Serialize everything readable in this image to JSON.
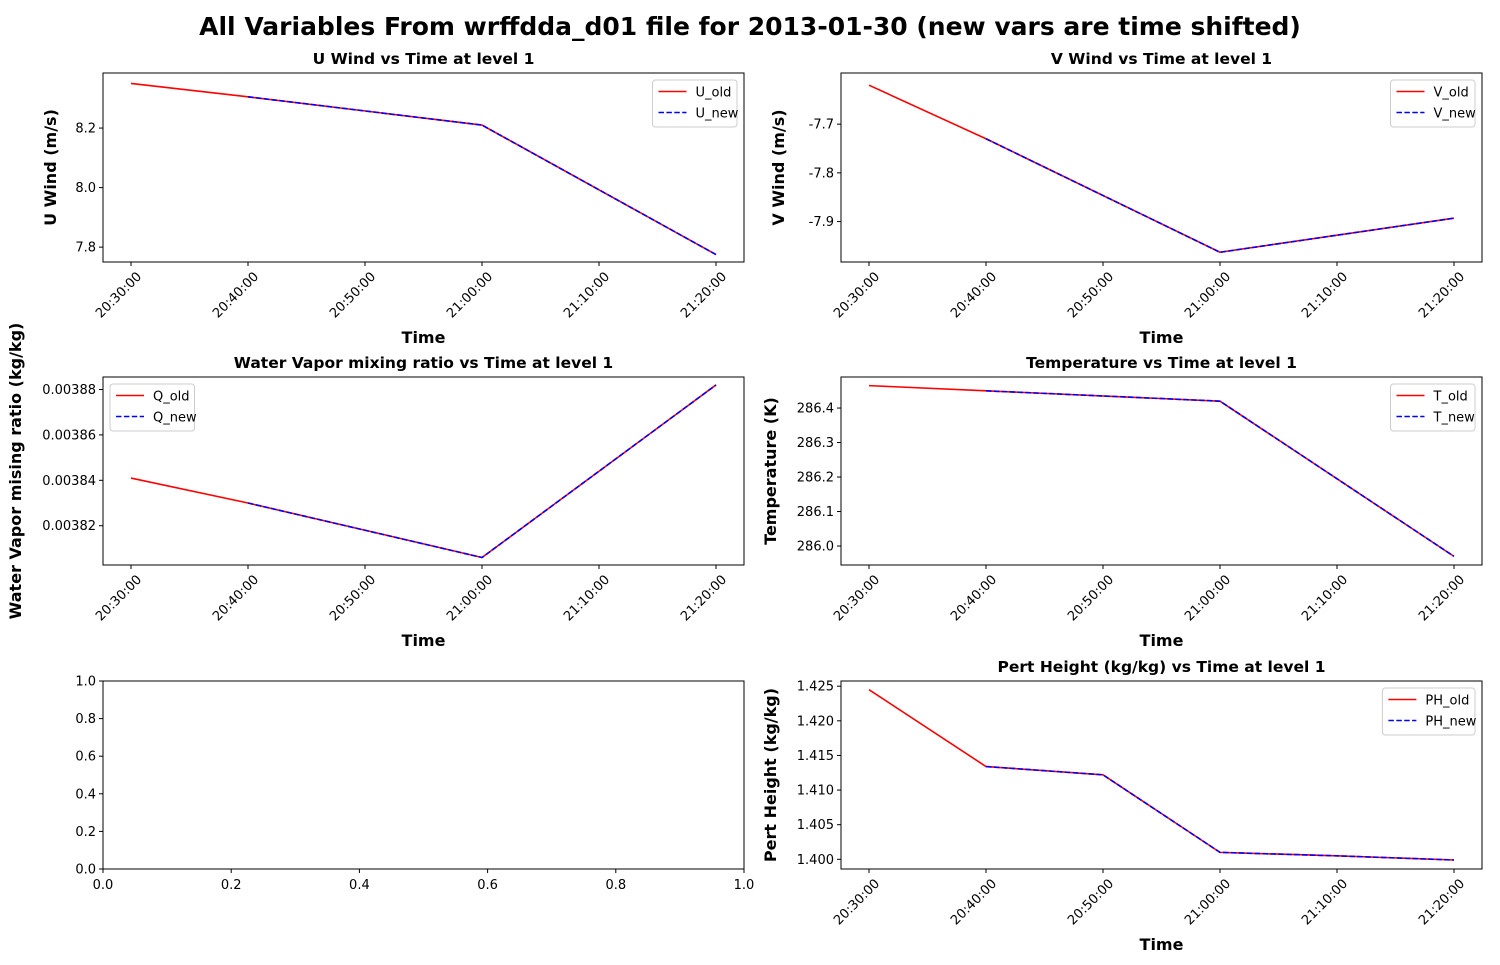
{
  "figure_title": "All Variables From wrffdda_d01 file for 2013-01-30 (new vars are time shifted)",
  "colors": {
    "old": "#ff0000",
    "new": "#0000ff",
    "axes": "#000000"
  },
  "chart_data": [
    {
      "id": "u",
      "type": "line",
      "title": "U Wind vs Time at level 1",
      "xlabel": "Time",
      "ylabel": "U Wind (m/s)",
      "xticks": [
        "20:30:00",
        "20:40:00",
        "20:50:00",
        "21:00:00",
        "21:10:00",
        "21:20:00"
      ],
      "yticks": [
        7.8,
        8.0,
        8.2
      ],
      "ylim": [
        7.75,
        8.385
      ],
      "ytick_decimals": 1,
      "legend": "top-right",
      "grid": false,
      "series": [
        {
          "name": "U_old",
          "style": "solid",
          "x": [
            "20:30:00",
            "20:40:00",
            "21:00:00",
            "21:20:00"
          ],
          "values": [
            8.35,
            8.305,
            8.21,
            7.775
          ]
        },
        {
          "name": "U_new",
          "style": "dashed",
          "x": [
            "20:40:00",
            "21:00:00",
            "21:20:00"
          ],
          "values": [
            8.305,
            8.21,
            7.775
          ]
        }
      ]
    },
    {
      "id": "v",
      "type": "line",
      "title": "V Wind vs Time at level 1",
      "xlabel": "Time",
      "ylabel": "V Wind (m/s)",
      "xticks": [
        "20:30:00",
        "20:40:00",
        "20:50:00",
        "21:00:00",
        "21:10:00",
        "21:20:00"
      ],
      "yticks": [
        -7.9,
        -7.8,
        -7.7
      ],
      "ylim": [
        -7.983,
        -7.595
      ],
      "ytick_decimals": 1,
      "legend": "top-right",
      "grid": false,
      "series": [
        {
          "name": "V_old",
          "style": "solid",
          "x": [
            "20:30:00",
            "20:40:00",
            "21:00:00",
            "21:20:00"
          ],
          "values": [
            -7.62,
            -7.73,
            -7.963,
            -7.893
          ]
        },
        {
          "name": "V_new",
          "style": "dashed",
          "x": [
            "20:40:00",
            "21:00:00",
            "21:20:00"
          ],
          "values": [
            -7.73,
            -7.963,
            -7.893
          ]
        }
      ]
    },
    {
      "id": "q",
      "type": "line",
      "title": "Water Vapor mixing ratio vs Time at level 1",
      "xlabel": "Time",
      "ylabel": "Water Vapor mising ratio (kg/kg)",
      "xticks": [
        "20:30:00",
        "20:40:00",
        "20:50:00",
        "21:00:00",
        "21:10:00",
        "21:20:00"
      ],
      "yticks": [
        0.00382,
        0.00384,
        0.00386,
        0.00388
      ],
      "ylim": [
        0.0038027,
        0.0038855
      ],
      "ytick_decimals": 5,
      "legend": "top-left",
      "grid": false,
      "series": [
        {
          "name": "Q_old",
          "style": "solid",
          "x": [
            "20:30:00",
            "20:40:00",
            "21:00:00",
            "21:20:00"
          ],
          "values": [
            0.003841,
            0.00383,
            0.003806,
            0.003882
          ]
        },
        {
          "name": "Q_new",
          "style": "dashed",
          "x": [
            "20:40:00",
            "21:00:00",
            "21:20:00"
          ],
          "values": [
            0.00383,
            0.003806,
            0.003882
          ]
        }
      ]
    },
    {
      "id": "t",
      "type": "line",
      "title": "Temperature vs Time at level 1",
      "xlabel": "Time",
      "ylabel": "Temperature (K)",
      "xticks": [
        "20:30:00",
        "20:40:00",
        "20:50:00",
        "21:00:00",
        "21:10:00",
        "21:20:00"
      ],
      "yticks": [
        286.0,
        286.1,
        286.2,
        286.3,
        286.4
      ],
      "ylim": [
        285.945,
        286.49
      ],
      "ytick_decimals": 1,
      "legend": "top-right",
      "grid": false,
      "series": [
        {
          "name": "T_old",
          "style": "solid",
          "x": [
            "20:30:00",
            "20:40:00",
            "21:00:00",
            "21:20:00"
          ],
          "values": [
            286.465,
            286.45,
            286.42,
            285.97
          ]
        },
        {
          "name": "T_new",
          "style": "dashed",
          "x": [
            "20:40:00",
            "21:00:00",
            "21:20:00"
          ],
          "values": [
            286.45,
            286.42,
            285.97
          ]
        }
      ]
    },
    {
      "id": "empty",
      "type": "line",
      "title": "",
      "xlabel": "",
      "ylabel": "",
      "xticks": [
        0.0,
        0.2,
        0.4,
        0.6,
        0.8,
        1.0
      ],
      "xlim": [
        0,
        1
      ],
      "xtick_decimals": 1,
      "yticks": [
        0.0,
        0.2,
        0.4,
        0.6,
        0.8,
        1.0
      ],
      "ylim": [
        0,
        1
      ],
      "ytick_decimals": 1,
      "legend": "",
      "grid": false,
      "series": []
    },
    {
      "id": "ph",
      "type": "line",
      "title": "Pert Height (kg/kg) vs Time at level 1",
      "xlabel": "Time",
      "ylabel": "Pert Height (kg/kg)",
      "xticks": [
        "20:30:00",
        "20:40:00",
        "20:50:00",
        "21:00:00",
        "21:10:00",
        "21:20:00"
      ],
      "yticks": [
        1.4,
        1.405,
        1.41,
        1.415,
        1.42,
        1.425
      ],
      "ylim": [
        1.3986,
        1.42575
      ],
      "ytick_decimals": 3,
      "legend": "top-right",
      "grid": false,
      "series": [
        {
          "name": "PH_old",
          "style": "solid",
          "x": [
            "20:30:00",
            "20:40:00",
            "20:50:00",
            "21:00:00",
            "21:10:00",
            "21:20:00"
          ],
          "values": [
            1.4245,
            1.4134,
            1.4122,
            1.401,
            1.4005,
            1.3999
          ]
        },
        {
          "name": "PH_new",
          "style": "dashed",
          "x": [
            "20:40:00",
            "20:50:00",
            "21:00:00",
            "21:10:00",
            "21:20:00"
          ],
          "values": [
            1.4134,
            1.4122,
            1.401,
            1.4005,
            1.3999
          ]
        }
      ]
    }
  ]
}
